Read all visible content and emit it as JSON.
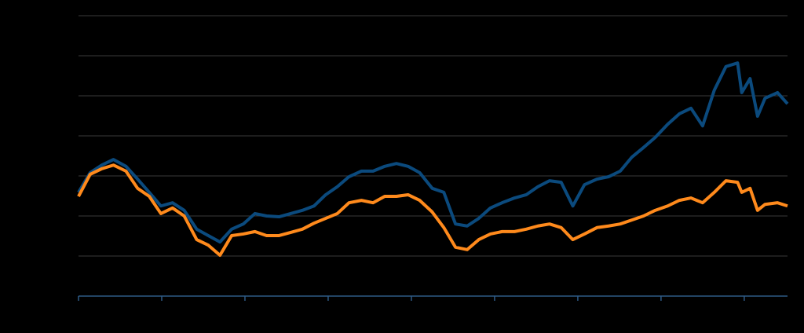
{
  "chart_data": {
    "type": "line",
    "x": [
      0,
      0.14,
      0.28,
      0.42,
      0.57,
      0.71,
      0.85,
      0.99,
      1.13,
      1.27,
      1.42,
      1.56,
      1.7,
      1.84,
      1.98,
      2.12,
      2.26,
      2.41,
      2.55,
      2.69,
      2.83,
      2.97,
      3.11,
      3.25,
      3.4,
      3.54,
      3.68,
      3.82,
      3.96,
      4.1,
      4.25,
      4.39,
      4.53,
      4.67,
      4.81,
      4.95,
      5.09,
      5.24,
      5.38,
      5.52,
      5.66,
      5.8,
      5.94,
      6.08,
      6.23,
      6.37,
      6.51,
      6.65,
      6.79,
      6.93,
      7.08,
      7.22,
      7.36,
      7.5,
      7.64,
      7.78,
      7.92,
      7.97,
      8.07,
      8.16,
      8.25,
      8.4,
      8.52
    ],
    "series": [
      {
        "color": "#0b4a7d",
        "values": [
          2.59,
          3.08,
          3.27,
          3.41,
          3.24,
          2.92,
          2.59,
          2.25,
          2.33,
          2.14,
          1.67,
          1.51,
          1.35,
          1.67,
          1.8,
          2.06,
          2.0,
          1.98,
          2.06,
          2.14,
          2.25,
          2.53,
          2.73,
          2.98,
          3.12,
          3.12,
          3.24,
          3.31,
          3.24,
          3.08,
          2.69,
          2.59,
          1.8,
          1.75,
          1.94,
          2.2,
          2.33,
          2.45,
          2.53,
          2.73,
          2.88,
          2.84,
          2.25,
          2.78,
          2.92,
          2.98,
          3.12,
          3.47,
          3.71,
          3.96,
          4.29,
          4.55,
          4.69,
          4.25,
          5.14,
          5.73,
          5.82,
          5.08,
          5.43,
          4.49,
          4.94,
          5.08,
          4.8
        ]
      },
      {
        "color": "#ff8a1c",
        "values": [
          2.49,
          3.04,
          3.18,
          3.27,
          3.12,
          2.69,
          2.49,
          2.06,
          2.2,
          2.0,
          1.41,
          1.27,
          1.02,
          1.51,
          1.55,
          1.61,
          1.51,
          1.51,
          1.59,
          1.67,
          1.82,
          1.94,
          2.06,
          2.33,
          2.39,
          2.33,
          2.49,
          2.49,
          2.53,
          2.39,
          2.1,
          1.71,
          1.22,
          1.16,
          1.41,
          1.55,
          1.61,
          1.61,
          1.67,
          1.75,
          1.8,
          1.71,
          1.41,
          1.55,
          1.71,
          1.75,
          1.8,
          1.9,
          2.0,
          2.14,
          2.25,
          2.39,
          2.45,
          2.33,
          2.59,
          2.88,
          2.84,
          2.59,
          2.69,
          2.14,
          2.29,
          2.33,
          2.25
        ]
      }
    ],
    "xlim": [
      0,
      8.52
    ],
    "xticks": [
      0,
      1,
      2,
      3,
      4,
      5,
      6,
      7,
      8
    ],
    "ylim": [
      0,
      7
    ],
    "yticks": [
      0,
      1,
      2,
      3,
      4,
      5,
      6,
      7
    ],
    "grid": true
  }
}
